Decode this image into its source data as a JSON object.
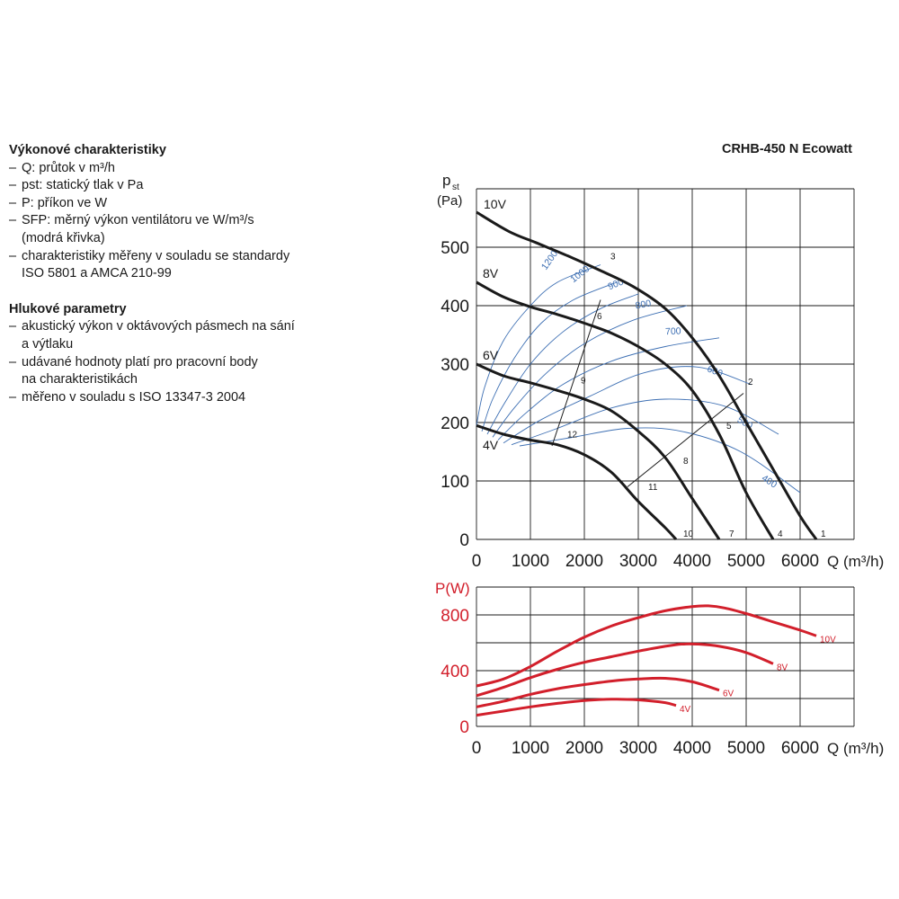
{
  "desc": {
    "performance_title": "Výkonové charakteristiky",
    "perf_items": [
      {
        "dash": "–",
        "lines": [
          "Q: průtok v m³/h"
        ]
      },
      {
        "dash": "–",
        "lines": [
          "pst: statický tlak v Pa"
        ]
      },
      {
        "dash": "–",
        "lines": [
          "P: příkon ve W"
        ]
      },
      {
        "dash": "–",
        "lines": [
          "SFP: měrný výkon ventilátoru ve W/m³/s",
          "(modrá křivka)"
        ]
      },
      {
        "dash": "–",
        "lines": [
          "charakteristiky měřeny v souladu se standardy",
          "ISO 5801 a AMCA 210-99"
        ]
      }
    ],
    "noise_title": "Hlukové parametry",
    "noise_items": [
      {
        "dash": "–",
        "lines": [
          "akustický výkon v oktávových pásmech na sání",
          "a výtlaku"
        ]
      },
      {
        "dash": "–",
        "lines": [
          "udávané hodnoty platí pro pracovní body",
          "na charakteristikách"
        ]
      },
      {
        "dash": "–",
        "lines": [
          "měřeno v souladu s ISO 13347-3 2004"
        ]
      }
    ]
  },
  "model": "CRHB-450 N Ecowatt",
  "colors": {
    "curve": "#1a1a1a",
    "sfp": "#3d6fb3",
    "power": "#d21f2b",
    "grid": "#1a1a1a"
  },
  "chart_data": [
    {
      "type": "line",
      "ylabel_main": "p",
      "ylabel_sub": "st",
      "ylabel_unit": "(Pa)",
      "xlabel": "Q (m³/h)",
      "xlim": [
        0,
        7000
      ],
      "ylim": [
        0,
        600
      ],
      "xticks": [
        0,
        1000,
        2000,
        3000,
        4000,
        5000,
        6000
      ],
      "yticks": [
        0,
        100,
        200,
        300,
        400,
        500
      ],
      "grid": true,
      "series": [
        {
          "name": "10V",
          "x": [
            0,
            600,
            1100,
            1700,
            2300,
            2900,
            3500,
            4000,
            4500,
            5000,
            5500,
            6000,
            6300
          ],
          "y": [
            560,
            527,
            508,
            485,
            460,
            433,
            395,
            345,
            280,
            200,
            120,
            40,
            0
          ]
        },
        {
          "name": "8V",
          "x": [
            0,
            500,
            1000,
            1500,
            2000,
            2500,
            3000,
            3500,
            4000,
            4500,
            5000,
            5500
          ],
          "y": [
            440,
            415,
            398,
            385,
            370,
            353,
            330,
            300,
            255,
            180,
            80,
            0
          ]
        },
        {
          "name": "6V",
          "x": [
            0,
            500,
            1000,
            1500,
            2000,
            2500,
            3000,
            3500,
            4000,
            4500
          ],
          "y": [
            300,
            280,
            268,
            255,
            240,
            220,
            185,
            140,
            70,
            0
          ]
        },
        {
          "name": "4V",
          "x": [
            0,
            500,
            1000,
            1500,
            2000,
            2500,
            3000,
            3500,
            3700
          ],
          "y": [
            195,
            180,
            170,
            162,
            145,
            115,
            65,
            20,
            0
          ]
        }
      ],
      "sfp_curves": [
        {
          "label": "1200",
          "x": [
            0,
            150,
            500,
            1000,
            1500,
            2300
          ],
          "y": [
            195,
            260,
            340,
            400,
            440,
            470
          ]
        },
        {
          "label": "1000",
          "x": [
            100,
            300,
            700,
            1200,
            1800,
            2600
          ],
          "y": [
            185,
            240,
            310,
            370,
            410,
            440
          ]
        },
        {
          "label": "900",
          "x": [
            200,
            500,
            1000,
            1600,
            2300,
            3000
          ],
          "y": [
            180,
            230,
            300,
            355,
            395,
            420
          ]
        },
        {
          "label": "800",
          "x": [
            300,
            700,
            1300,
            2000,
            2900,
            3900
          ],
          "y": [
            175,
            225,
            285,
            335,
            375,
            400
          ]
        },
        {
          "label": "700",
          "x": [
            400,
            900,
            1600,
            2500,
            3500,
            4500
          ],
          "y": [
            170,
            215,
            265,
            305,
            330,
            345
          ]
        },
        {
          "label": "600",
          "x": [
            500,
            1200,
            2100,
            3100,
            4100,
            5100
          ],
          "y": [
            165,
            205,
            245,
            285,
            295,
            265
          ]
        },
        {
          "label": "500",
          "x": [
            650,
            1500,
            2500,
            3500,
            4600,
            5600
          ],
          "y": [
            162,
            190,
            225,
            240,
            228,
            180
          ]
        },
        {
          "label": "400",
          "x": [
            800,
            1800,
            2800,
            3800,
            4900,
            6000
          ],
          "y": [
            160,
            175,
            190,
            185,
            150,
            80
          ]
        }
      ],
      "sfp_label_points": [
        {
          "label": "1200",
          "x": 1400,
          "y": 475,
          "angle": -55
        },
        {
          "label": "1000",
          "x": 1950,
          "y": 450,
          "angle": -38
        },
        {
          "label": "900",
          "x": 2600,
          "y": 432,
          "angle": -22
        },
        {
          "label": "800",
          "x": 3100,
          "y": 397,
          "angle": -10
        },
        {
          "label": "700",
          "x": 3650,
          "y": 351,
          "angle": -3
        },
        {
          "label": "600",
          "x": 4400,
          "y": 283,
          "angle": 22
        },
        {
          "label": "500",
          "x": 4950,
          "y": 195,
          "angle": 30
        },
        {
          "label": "400",
          "x": 5400,
          "y": 95,
          "angle": 33
        }
      ],
      "system_curves": [
        {
          "x": [
            1400,
            2300
          ],
          "y": [
            160,
            410
          ]
        },
        {
          "x": [
            2800,
            4950
          ],
          "y": [
            90,
            250
          ]
        }
      ],
      "points": [
        {
          "label": "1",
          "x": 6350,
          "y": 0
        },
        {
          "label": "2",
          "x": 5000,
          "y": 260
        },
        {
          "label": "3",
          "x": 2450,
          "y": 475
        },
        {
          "label": "4",
          "x": 5550,
          "y": 0
        },
        {
          "label": "5",
          "x": 4600,
          "y": 185
        },
        {
          "label": "6",
          "x": 2200,
          "y": 372
        },
        {
          "label": "7",
          "x": 4650,
          "y": 0
        },
        {
          "label": "8",
          "x": 3800,
          "y": 125
        },
        {
          "label": "9",
          "x": 1900,
          "y": 262
        },
        {
          "label": "10",
          "x": 3800,
          "y": 0
        },
        {
          "label": "11",
          "x": 3150,
          "y": 80
        },
        {
          "label": "12",
          "x": 1650,
          "y": 170
        }
      ]
    },
    {
      "type": "line",
      "ylabel": "P(W)",
      "xlabel": "Q (m³/h)",
      "xlim": [
        0,
        7000
      ],
      "ylim": [
        0,
        1000
      ],
      "xticks": [
        0,
        1000,
        2000,
        3000,
        4000,
        5000,
        6000
      ],
      "yticks": [
        0,
        400,
        800
      ],
      "grid": true,
      "series": [
        {
          "name": "10V",
          "x": [
            0,
            500,
            1000,
            1500,
            2000,
            2500,
            3000,
            3500,
            4000,
            4300,
            4600,
            5000,
            5500,
            6000,
            6300
          ],
          "y": [
            290,
            340,
            430,
            540,
            640,
            720,
            780,
            830,
            860,
            865,
            850,
            810,
            750,
            690,
            650
          ]
        },
        {
          "name": "8V",
          "x": [
            0,
            500,
            1000,
            1500,
            2000,
            2500,
            3000,
            3500,
            3800,
            4100,
            4500,
            5000,
            5500
          ],
          "y": [
            220,
            280,
            350,
            410,
            460,
            500,
            540,
            575,
            590,
            590,
            575,
            530,
            450
          ]
        },
        {
          "name": "6V",
          "x": [
            0,
            500,
            1000,
            1500,
            2000,
            2500,
            3000,
            3500,
            4000,
            4500
          ],
          "y": [
            140,
            180,
            230,
            270,
            300,
            325,
            340,
            345,
            320,
            260
          ]
        },
        {
          "name": "4V",
          "x": [
            0,
            500,
            1000,
            1500,
            2000,
            2500,
            3000,
            3500,
            3700
          ],
          "y": [
            80,
            110,
            140,
            165,
            185,
            195,
            190,
            170,
            150
          ]
        }
      ]
    }
  ]
}
